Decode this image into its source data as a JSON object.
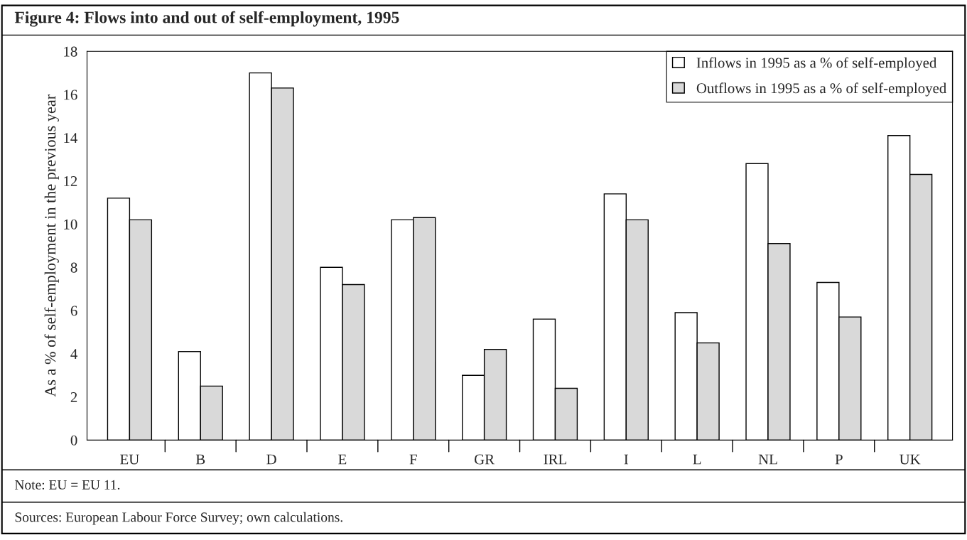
{
  "chart_data": {
    "type": "bar",
    "title": "Figure 4: Flows into and out of self-employment, 1995",
    "ylabel": "As a % of self-employment in the previous year",
    "categories": [
      "EU",
      "B",
      "D",
      "E",
      "F",
      "GR",
      "IRL",
      "I",
      "L",
      "NL",
      "P",
      "UK"
    ],
    "series": [
      {
        "name": "Inflows in 1995 as a % of self-employed",
        "color": "#ffffff",
        "values": [
          11.2,
          4.1,
          17.0,
          8.0,
          10.2,
          3.0,
          5.6,
          11.4,
          5.9,
          12.8,
          7.3,
          14.1
        ]
      },
      {
        "name": "Outflows in 1995 as a % of self-employed",
        "color": "#d9d9d9",
        "values": [
          10.2,
          2.5,
          16.3,
          7.2,
          10.3,
          4.2,
          2.4,
          10.2,
          4.5,
          9.1,
          5.7,
          12.3
        ]
      }
    ],
    "ylim": [
      0,
      18
    ],
    "yticks": [
      0,
      2,
      4,
      6,
      8,
      10,
      12,
      14,
      16,
      18
    ],
    "grid": false,
    "legend": "top right",
    "annotations": [
      "Note: EU = EU 11.",
      "Sources: European Labour Force Survey; own calculations."
    ]
  }
}
